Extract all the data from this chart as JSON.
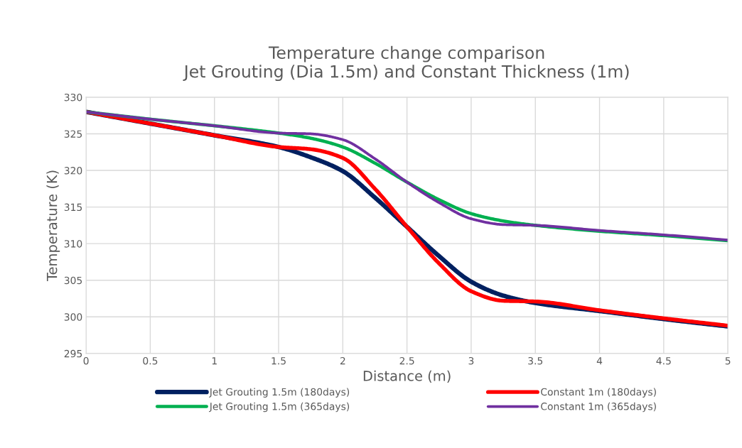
{
  "chart_data": {
    "type": "line",
    "title": "Temperature change comparison\nJet Grouting (Dia 1.5m) and Constant Thickness (1m)",
    "xlabel": "Distance (m)",
    "ylabel": "Temperature (K)",
    "x": [
      0,
      0.5,
      1,
      1.5,
      1.75,
      2,
      2.25,
      2.5,
      2.75,
      3,
      3.25,
      3.5,
      4,
      4.5,
      5
    ],
    "series": [
      {
        "name": "Jet Grouting 1.5m (180days)",
        "color": "#002060",
        "values": [
          328,
          326.4,
          324.8,
          323.2,
          321.8,
          319.9,
          316.3,
          312.3,
          308.3,
          304.8,
          302.9,
          301.9,
          300.8,
          299.7,
          298.7
        ]
      },
      {
        "name": "Constant 1m (180days)",
        "color": "#ff0000",
        "values": [
          328,
          326.4,
          324.8,
          323.2,
          322.9,
          321.7,
          317.5,
          312.3,
          307.3,
          303.5,
          302.2,
          302.1,
          300.9,
          299.8,
          298.8
        ]
      },
      {
        "name": "Jet Grouting 1.5m (365days)",
        "color": "#00b050",
        "values": [
          328,
          327,
          326.1,
          325.1,
          324.4,
          323.2,
          321,
          318.4,
          316,
          314.1,
          313.1,
          312.5,
          311.7,
          311.1,
          310.4
        ]
      },
      {
        "name": "Constant 1m (365days)",
        "color": "#7030a0",
        "values": [
          328,
          327,
          326.1,
          325.1,
          325,
          324.2,
          321.6,
          318.4,
          315.6,
          313.4,
          312.6,
          312.5,
          311.8,
          311.2,
          310.5
        ]
      }
    ],
    "xlim": [
      0,
      5
    ],
    "xticks": [
      0,
      0.5,
      1,
      1.5,
      2,
      2.5,
      3,
      3.5,
      4,
      4.5,
      5
    ],
    "ylim": [
      295,
      330
    ],
    "yticks": [
      295,
      300,
      305,
      310,
      315,
      320,
      325,
      330
    ],
    "grid": true,
    "legend": "bottom",
    "marker": "none",
    "line_style": "solid"
  }
}
